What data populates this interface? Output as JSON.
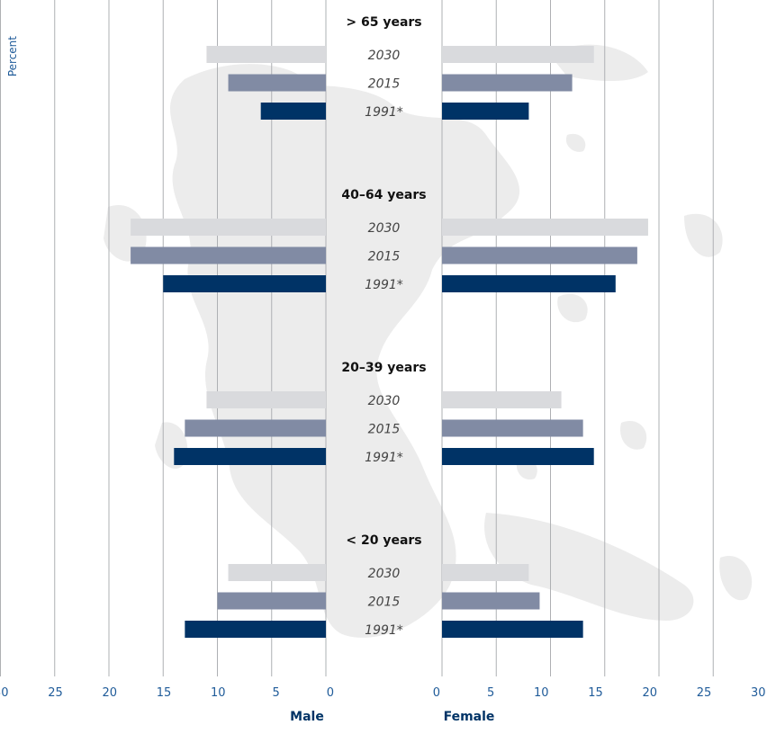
{
  "chart_data": {
    "type": "bar",
    "orientation": "horizontal-butterfly",
    "ylabel": "Percent",
    "left_side_label": "Male",
    "right_side_label": "Female",
    "xlim": [
      0,
      30
    ],
    "xticks": [
      0,
      5,
      10,
      15,
      20,
      25,
      30
    ],
    "grid": true,
    "colors": {
      "2030": "#d9dadd",
      "2015": "#818ba4",
      "1991*": "#003366"
    },
    "groups": [
      {
        "name": "> 65 years",
        "bars": [
          {
            "year": "2030",
            "male": 11,
            "female": 14
          },
          {
            "year": "2015",
            "male": 9,
            "female": 12
          },
          {
            "year": "1991*",
            "male": 6,
            "female": 8
          }
        ]
      },
      {
        "name": "40–64 years",
        "bars": [
          {
            "year": "2030",
            "male": 18,
            "female": 19
          },
          {
            "year": "2015",
            "male": 18,
            "female": 18
          },
          {
            "year": "1991*",
            "male": 15,
            "female": 16
          }
        ]
      },
      {
        "name": "20–39 years",
        "bars": [
          {
            "year": "2030",
            "male": 11,
            "female": 11
          },
          {
            "year": "2015",
            "male": 13,
            "female": 13
          },
          {
            "year": "1991*",
            "male": 14,
            "female": 14
          }
        ]
      },
      {
        "name": "< 20 years",
        "bars": [
          {
            "year": "2030",
            "male": 9,
            "female": 8
          },
          {
            "year": "2015",
            "male": 10,
            "female": 9
          },
          {
            "year": "1991*",
            "male": 13,
            "female": 13
          }
        ]
      }
    ]
  }
}
